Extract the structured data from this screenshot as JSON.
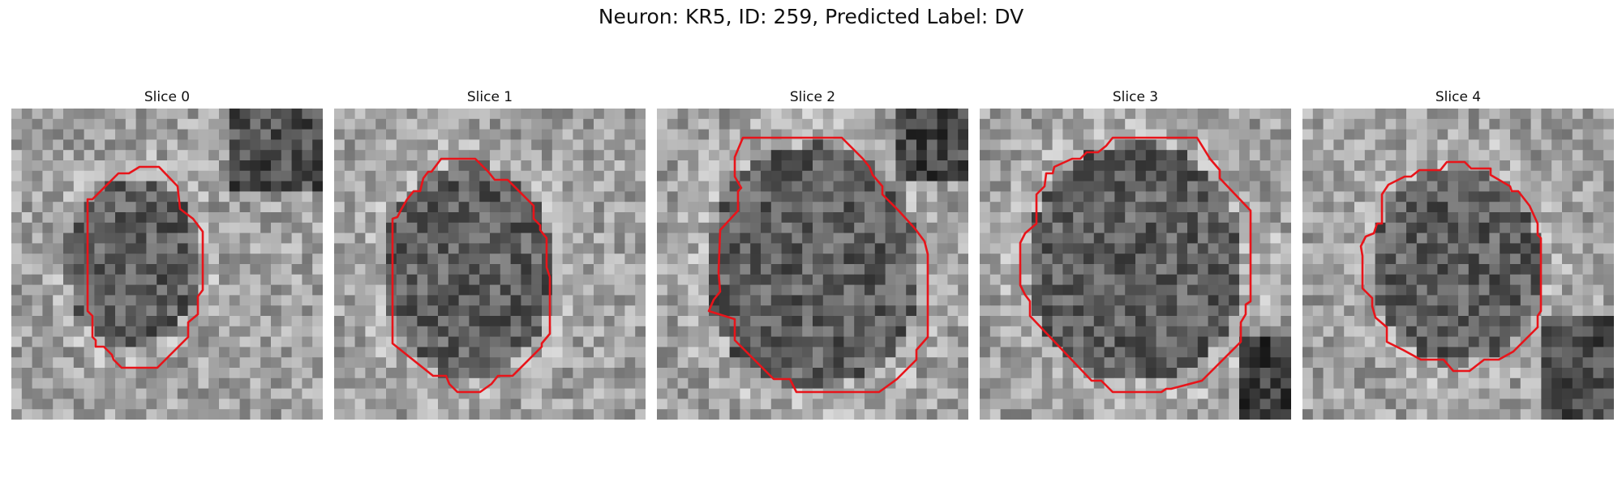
{
  "figure": {
    "title": "Neuron: KR5, ID: 259, Predicted Label: DV"
  },
  "panels": [
    {
      "title": "Slice 0"
    },
    {
      "title": "Slice 1"
    },
    {
      "title": "Slice 2"
    },
    {
      "title": "Slice 3"
    },
    {
      "title": "Slice 4"
    }
  ],
  "colors": {
    "contour": "#e8141a",
    "background": "#ffffff"
  }
}
